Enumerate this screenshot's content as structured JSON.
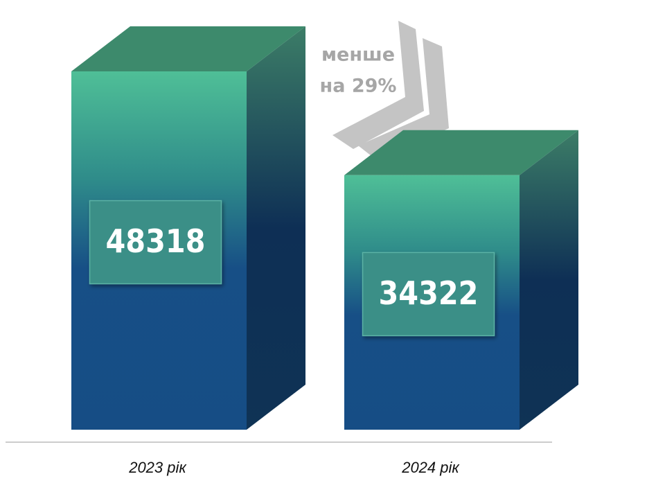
{
  "chart_data": {
    "type": "bar3d",
    "categories": [
      "2023 рік",
      "2024 рік"
    ],
    "values": [
      48318,
      34322
    ],
    "annotation": [
      "менше",
      "на 29%"
    ]
  }
}
